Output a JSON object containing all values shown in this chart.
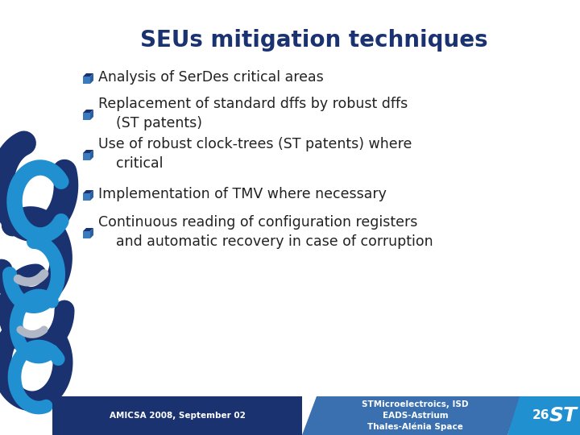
{
  "title": "SEUs mitigation techniques",
  "title_color": "#1a3370",
  "title_fontsize": 20,
  "bg_color": "#ffffff",
  "bullet_texts": [
    "Analysis of SerDes critical areas",
    "Replacement of standard dffs by robust dffs\n    (ST patents)",
    "Use of robust clock-trees (ST patents) where\n    critical",
    "Implementation of TMV where necessary",
    "Continuous reading of configuration registers\n    and automatic recovery in case of corruption"
  ],
  "bullet_icon_front": "#3a7abd",
  "bullet_icon_top": "#1a3370",
  "bullet_icon_right": "#2a5fa0",
  "text_color": "#222222",
  "text_fontsize": 12.5,
  "footer_left_bg": "#1a3370",
  "footer_mid_bg": "#3a6fb0",
  "footer_right_bg": "#2090d0",
  "footer_left_text": "AMICSA 2008, September 02",
  "footer_mid_text": "STMicroelectroics, ISD\nEADS-Astrium\nThales-Alénia Space",
  "footer_right_num": "26",
  "footer_text_color": "#ffffff",
  "footer_fontsize": 7.5,
  "slide_number_fontsize": 11,
  "spiral_dark": "#1a3370",
  "spiral_light": "#2090d0",
  "spiral_gray": "#b0b8c8"
}
